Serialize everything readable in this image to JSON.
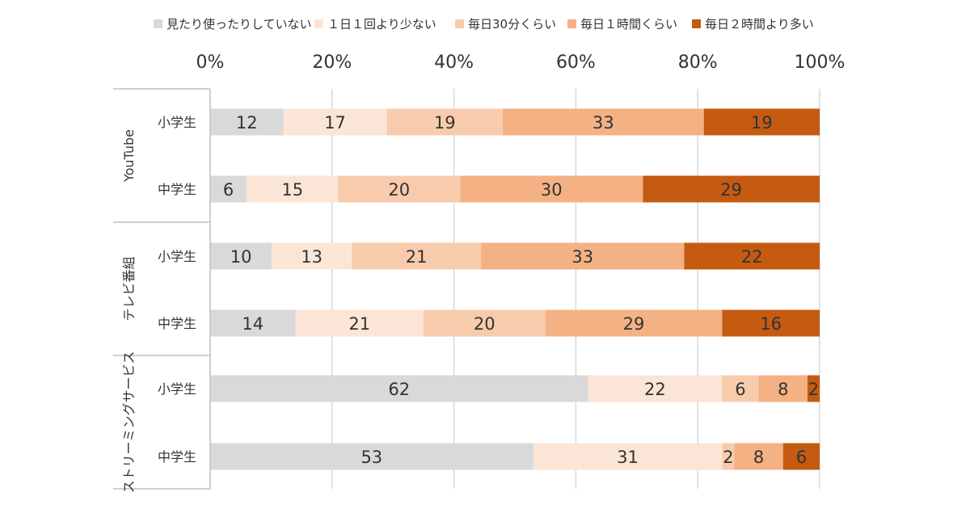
{
  "chart_data": {
    "type": "bar",
    "orientation": "horizontal",
    "stacked": "percent",
    "xlim": [
      0,
      100
    ],
    "ticks": [
      "0%",
      "20%",
      "40%",
      "60%",
      "80%",
      "100%"
    ],
    "tick_values": [
      0,
      20,
      40,
      60,
      80,
      100
    ],
    "grid": true,
    "legend_position": "top",
    "series": [
      {
        "name": "見たり使ったりしていない",
        "color": "#d9d9d9"
      },
      {
        "name": "１日１回より少ない",
        "color": "#fbe5d6"
      },
      {
        "name": "毎日30分くらい",
        "color": "#f8cbad"
      },
      {
        "name": "毎日１時間くらい",
        "color": "#f4b183"
      },
      {
        "name": "毎日２時間より多い",
        "color": "#c55a11"
      }
    ],
    "groups": [
      {
        "name": "YouTube",
        "rows": [
          {
            "label": "小学生",
            "values": [
              12,
              17,
              19,
              33,
              19
            ]
          },
          {
            "label": "中学生",
            "values": [
              6,
              15,
              20,
              30,
              29
            ]
          }
        ]
      },
      {
        "name": "テレビ番組",
        "rows": [
          {
            "label": "小学生",
            "values": [
              10,
              13,
              21,
              33,
              22
            ]
          },
          {
            "label": "中学生",
            "values": [
              14,
              21,
              20,
              29,
              16
            ]
          }
        ]
      },
      {
        "name": "ストリーミングサービス",
        "rows": [
          {
            "label": "小学生",
            "values": [
              62,
              22,
              6,
              8,
              2
            ]
          },
          {
            "label": "中学生",
            "values": [
              53,
              31,
              2,
              8,
              6
            ]
          }
        ]
      }
    ]
  }
}
